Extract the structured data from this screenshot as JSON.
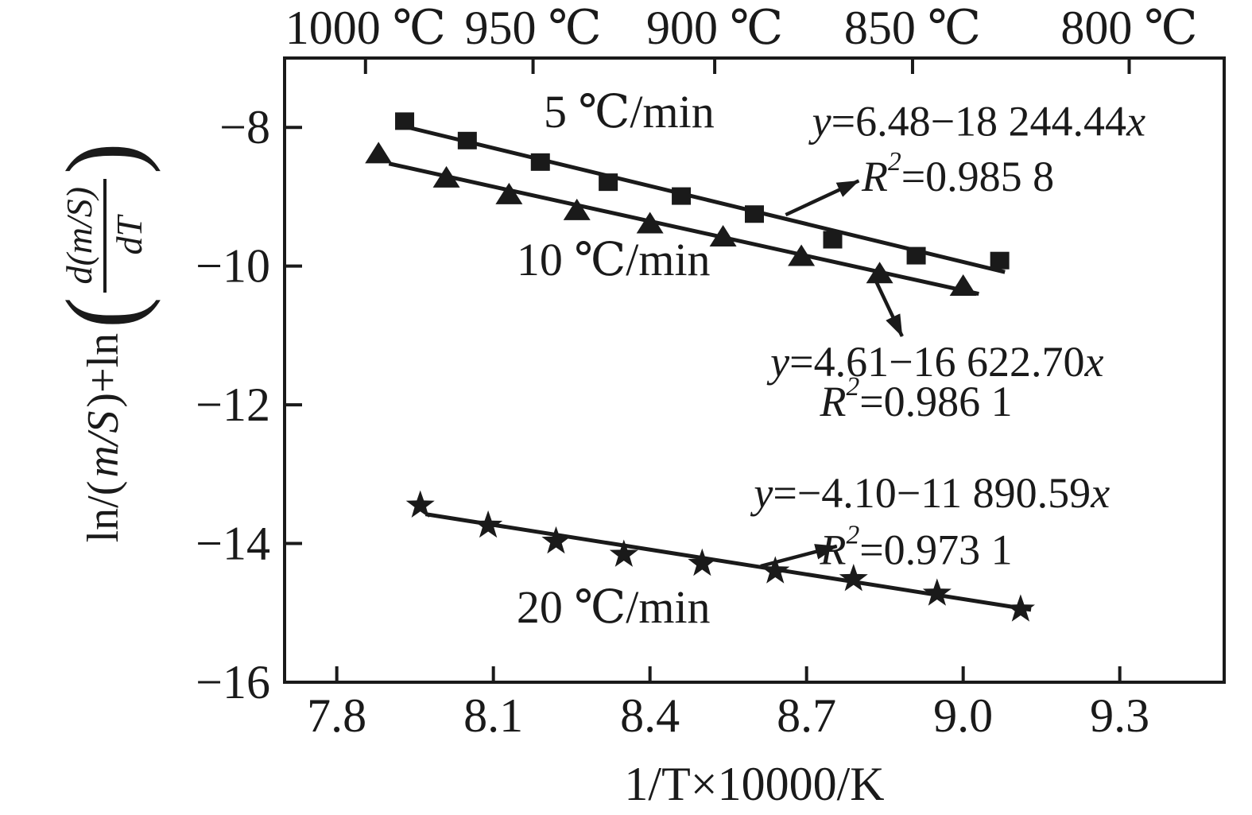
{
  "figure": {
    "background": "#ffffff",
    "ink": "#1a1a1a"
  },
  "y_title": {
    "prefix_1": "ln/(",
    "prefix_m": "m/S",
    "prefix_2": ")+ln",
    "paren_open": "(",
    "numerator": "d(m/S)",
    "denominator": "dT",
    "paren_close": ")"
  },
  "chart_data": {
    "type": "scatter",
    "title": "",
    "xlabel": "1/T×10000/K",
    "ylabel": "ln/(m/S)+ln(d(m/S)/dT)",
    "x_range": [
      7.7,
      9.5
    ],
    "y_range": [
      -16,
      -7
    ],
    "grid": false,
    "legend_position": "none",
    "x_ticks": [
      {
        "v": 7.8,
        "label": "7.8"
      },
      {
        "v": 8.1,
        "label": "8.1"
      },
      {
        "v": 8.4,
        "label": "8.4"
      },
      {
        "v": 8.7,
        "label": "8.7"
      },
      {
        "v": 9.0,
        "label": "9.0"
      },
      {
        "v": 9.3,
        "label": "9.3"
      }
    ],
    "x_top_ticks": [
      {
        "v": 7.855,
        "label": "1000 ℃"
      },
      {
        "v": 8.176,
        "label": "950 ℃"
      },
      {
        "v": 8.524,
        "label": "900 ℃"
      },
      {
        "v": 8.903,
        "label": "850 ℃"
      },
      {
        "v": 9.318,
        "label": "800 ℃"
      }
    ],
    "y_ticks": [
      {
        "v": -8,
        "label": "−8"
      },
      {
        "v": -10,
        "label": "−10"
      },
      {
        "v": -12,
        "label": "−12"
      },
      {
        "v": -14,
        "label": "−14"
      },
      {
        "v": -16,
        "label": "−16"
      }
    ],
    "series": [
      {
        "id": "5c",
        "name": "5 ℃/min",
        "marker": "square",
        "equation": "y=6.48−18 244.44x",
        "r_squared": "R²=0.985 8",
        "points": [
          [
            7.93,
            -7.91
          ],
          [
            8.05,
            -8.19
          ],
          [
            8.19,
            -8.5
          ],
          [
            8.32,
            -8.79
          ],
          [
            8.46,
            -8.99
          ],
          [
            8.6,
            -9.25
          ],
          [
            8.75,
            -9.62
          ],
          [
            8.91,
            -9.85
          ],
          [
            9.07,
            -9.92
          ]
        ],
        "fit": {
          "intercept": 6.48,
          "slope": -1.824444,
          "x_start": 7.94,
          "x_end": 9.08
        }
      },
      {
        "id": "10c",
        "name": "10 ℃/min",
        "marker": "triangle",
        "equation": "y=4.61−16 622.70x",
        "r_squared": "R²=0.986 1",
        "points": [
          [
            7.88,
            -8.38
          ],
          [
            8.01,
            -8.73
          ],
          [
            8.13,
            -8.97
          ],
          [
            8.26,
            -9.2
          ],
          [
            8.4,
            -9.39
          ],
          [
            8.54,
            -9.58
          ],
          [
            8.69,
            -9.86
          ],
          [
            8.84,
            -10.11
          ],
          [
            9.0,
            -10.29
          ]
        ],
        "fit": {
          "intercept": 4.61,
          "slope": -1.66227,
          "x_start": 7.9,
          "x_end": 9.03
        }
      },
      {
        "id": "20c",
        "name": "20 ℃/min",
        "marker": "star",
        "equation": "y=−4.10−11 890.59x",
        "r_squared": "R²=0.973 1",
        "points": [
          [
            7.96,
            -13.45
          ],
          [
            8.09,
            -13.74
          ],
          [
            8.22,
            -13.97
          ],
          [
            8.35,
            -14.16
          ],
          [
            8.5,
            -14.29
          ],
          [
            8.64,
            -14.4
          ],
          [
            8.79,
            -14.51
          ],
          [
            8.95,
            -14.72
          ],
          [
            9.11,
            -14.95
          ]
        ],
        "fit": {
          "intercept": -4.1,
          "slope": -1.189059,
          "x_start": 7.97,
          "x_end": 9.13
        }
      }
    ],
    "annotations": [
      {
        "name": "equation-5c",
        "x": 9.03,
        "y": -7.91,
        "cls": "ann",
        "segments": [
          [
            "y",
            "i"
          ],
          [
            "=6.48−18 244.44",
            "n"
          ],
          [
            "x",
            "i"
          ]
        ]
      },
      {
        "name": "r-squared-5c",
        "x": 8.99,
        "y": -8.71,
        "cls": "ann",
        "segments": [
          [
            "R",
            "i"
          ],
          [
            "2",
            "s"
          ],
          [
            "=0.985 8",
            "n"
          ]
        ]
      },
      {
        "name": "equation-10c",
        "x": 8.95,
        "y": -11.38,
        "cls": "ann",
        "segments": [
          [
            "y",
            "i"
          ],
          [
            "=4.61−16 622.70",
            "n"
          ],
          [
            "x",
            "i"
          ]
        ]
      },
      {
        "name": "r-squared-10c",
        "x": 8.91,
        "y": -11.95,
        "cls": "ann",
        "segments": [
          [
            "R",
            "i"
          ],
          [
            "2",
            "s"
          ],
          [
            "=0.986 1",
            "n"
          ]
        ]
      },
      {
        "name": "equation-20c",
        "x": 8.94,
        "y": -13.27,
        "cls": "ann",
        "segments": [
          [
            "y",
            "i"
          ],
          [
            "=−4.10−11 890.59",
            "n"
          ],
          [
            "x",
            "i"
          ]
        ]
      },
      {
        "name": "r-squared-20c",
        "x": 8.91,
        "y": -14.09,
        "cls": "ann",
        "segments": [
          [
            "R",
            "i"
          ],
          [
            "2",
            "s"
          ],
          [
            "=0.973 1",
            "n"
          ]
        ]
      },
      {
        "name": "series-label-5c",
        "x": 8.36,
        "y": -7.77,
        "cls": "slabel",
        "segments": [
          [
            "5 ℃/min",
            "n"
          ]
        ]
      },
      {
        "name": "series-label-10c",
        "x": 8.33,
        "y": -9.9,
        "cls": "slabel",
        "segments": [
          [
            "10 ℃/min",
            "n"
          ]
        ]
      },
      {
        "name": "series-label-20c",
        "x": 8.33,
        "y": -14.91,
        "cls": "slabel",
        "segments": [
          [
            "20 ℃/min",
            "n"
          ]
        ]
      }
    ],
    "arrows": [
      {
        "name": "arrow-to-r2-5c",
        "x1": 8.66,
        "y1": -9.26,
        "x2": 8.8,
        "y2": -8.77
      },
      {
        "name": "arrow-to-equation-10c",
        "x1": 8.834,
        "y1": -10.233,
        "x2": 8.883,
        "y2": -11.012
      },
      {
        "name": "arrow-to-r2-20c",
        "x1": 8.612,
        "y1": -14.326,
        "x2": 8.758,
        "y2": -14.039
      }
    ]
  }
}
